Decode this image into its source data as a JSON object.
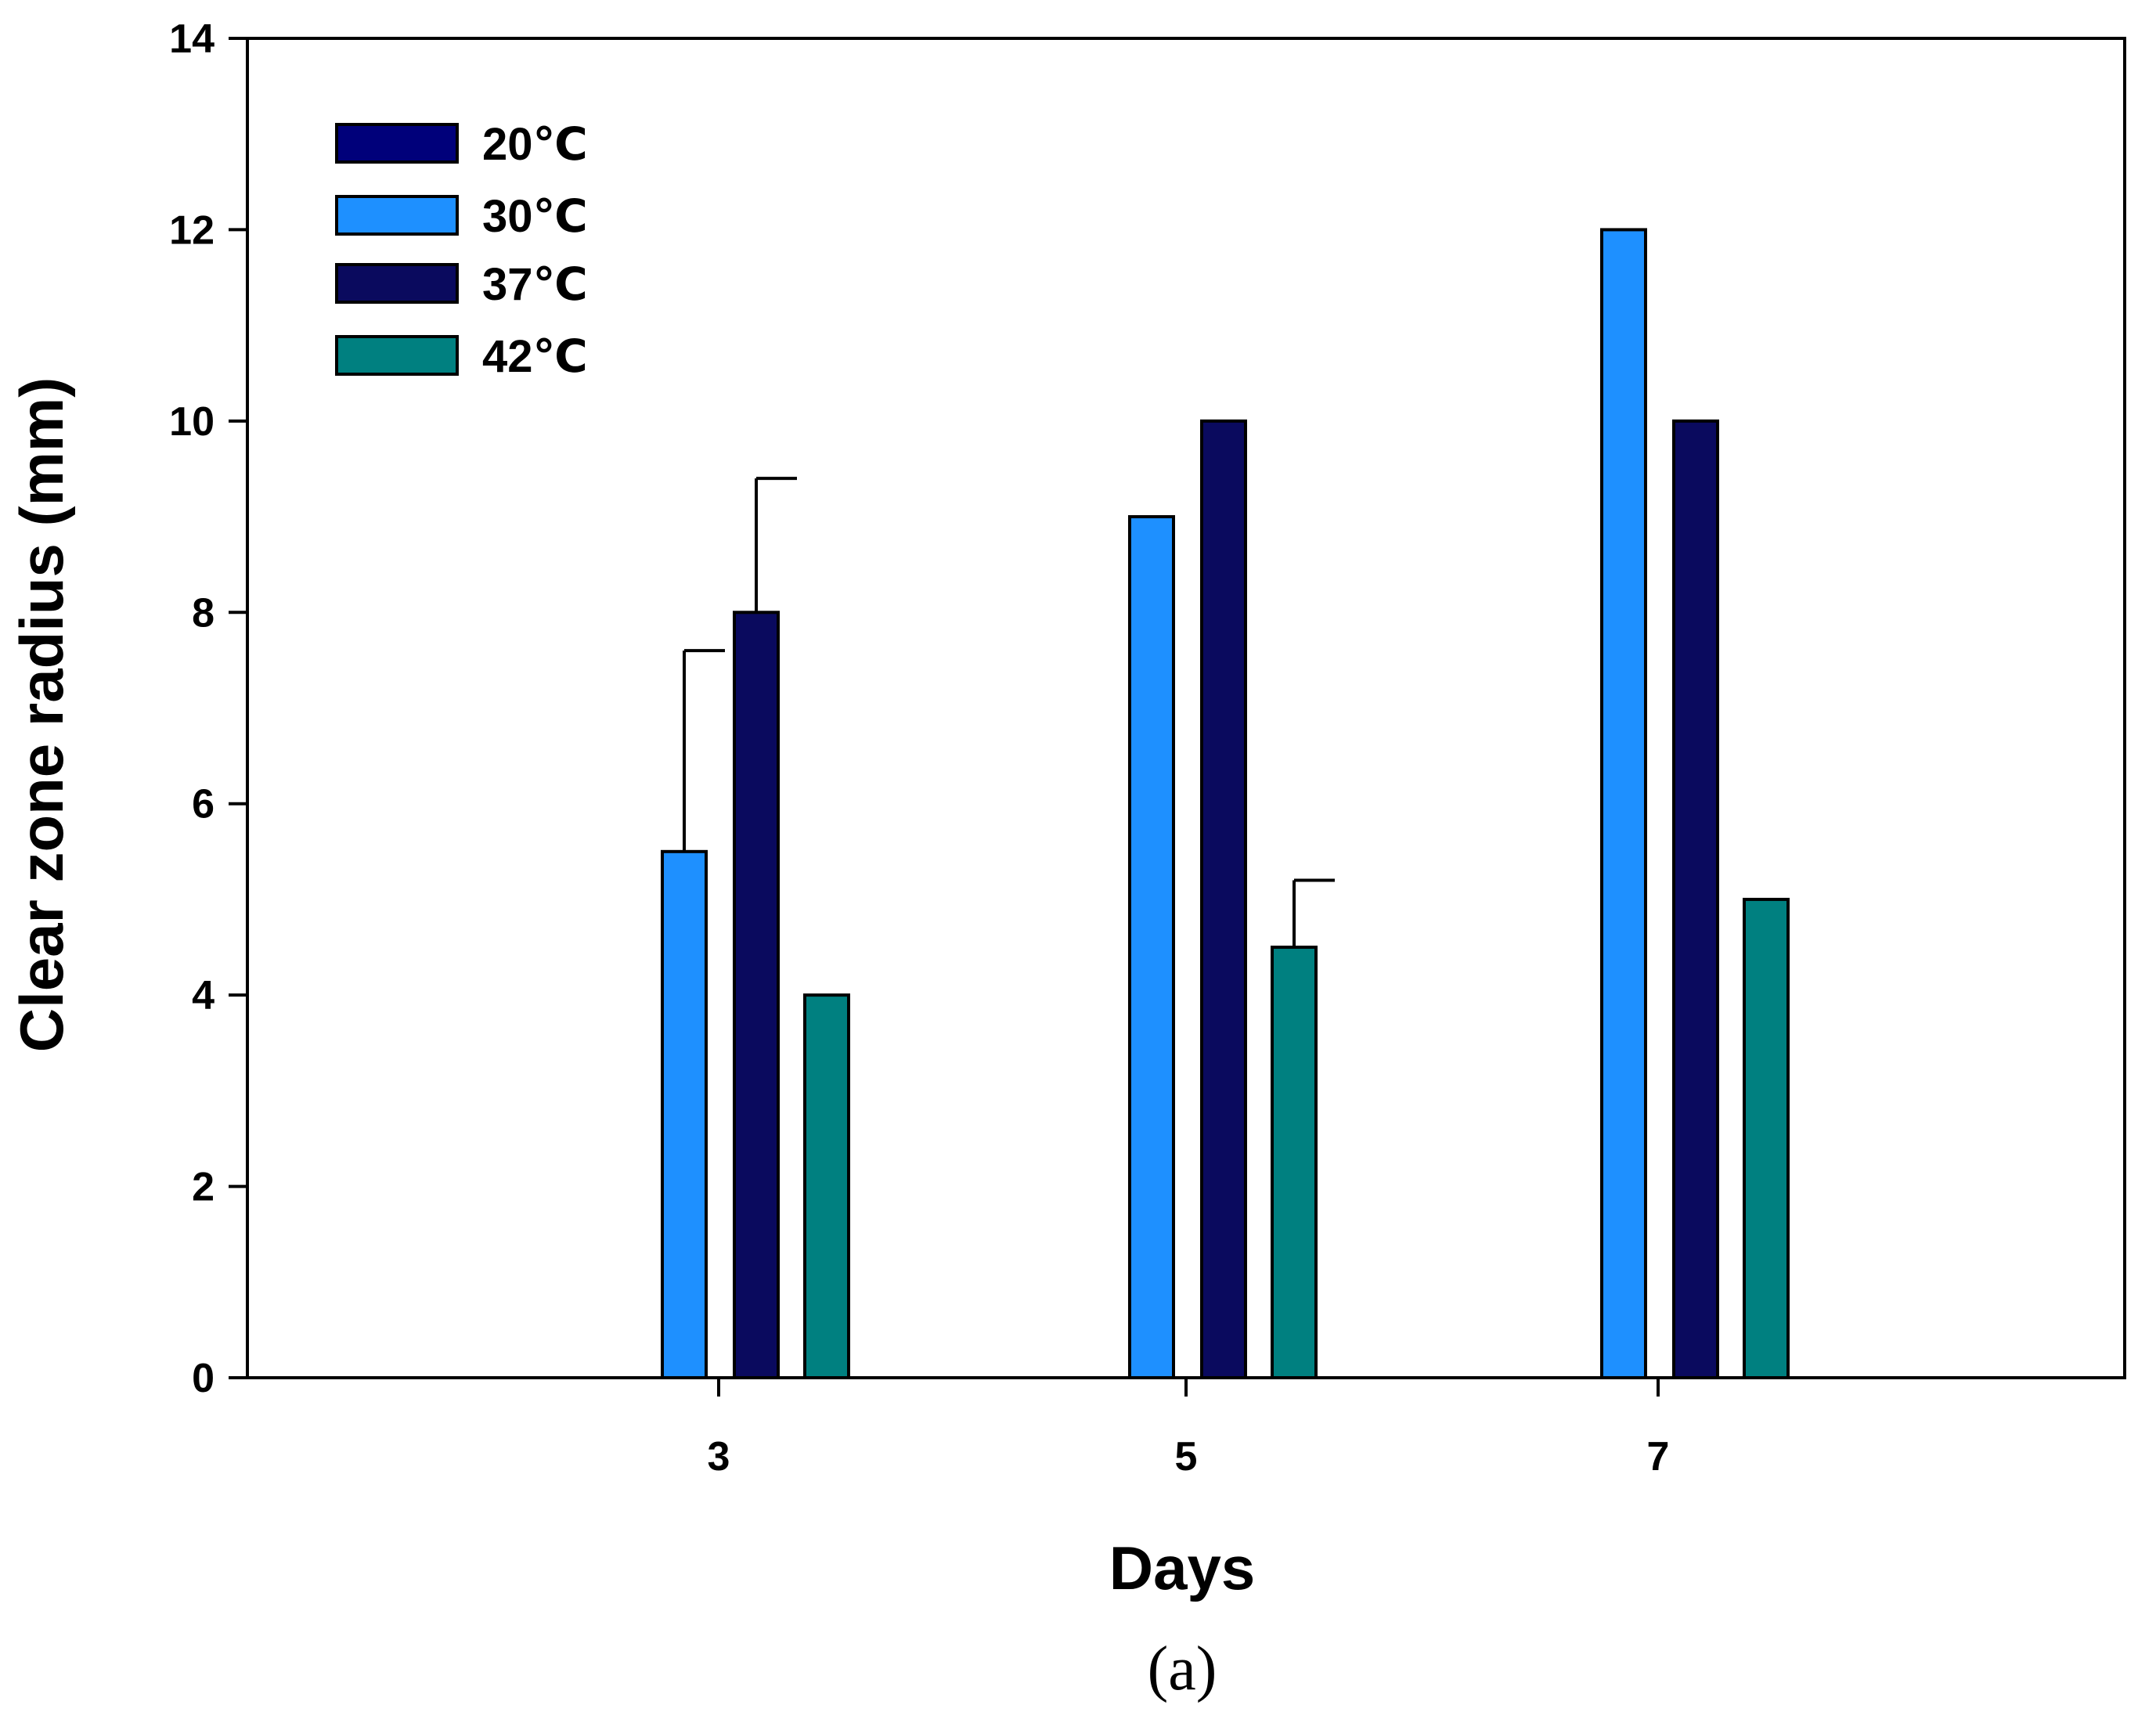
{
  "chart_data": {
    "type": "bar",
    "title": "",
    "xlabel": "Days",
    "ylabel": "Clear zone radius (mm)",
    "caption": "(a)",
    "categories": [
      "3",
      "5",
      "7"
    ],
    "ylim": [
      0,
      14
    ],
    "yticks": [
      "0",
      "2",
      "4",
      "6",
      "8",
      "10",
      "12",
      "14"
    ],
    "grid": false,
    "legend_position": "top-left",
    "series": [
      {
        "name": "20℃",
        "color": "#00007a",
        "values": [
          0,
          0,
          0
        ],
        "errors": [
          0,
          0,
          0
        ]
      },
      {
        "name": "30℃",
        "color": "#1e90ff",
        "values": [
          5.5,
          9,
          12
        ],
        "errors": [
          2.1,
          0,
          0
        ]
      },
      {
        "name": "37℃",
        "color": "#0a0a5e",
        "values": [
          8,
          10,
          10
        ],
        "errors": [
          1.4,
          0,
          0
        ]
      },
      {
        "name": "42℃",
        "color": "#008080",
        "values": [
          4,
          4.5,
          5
        ],
        "errors": [
          0,
          0.7,
          0
        ]
      }
    ]
  }
}
